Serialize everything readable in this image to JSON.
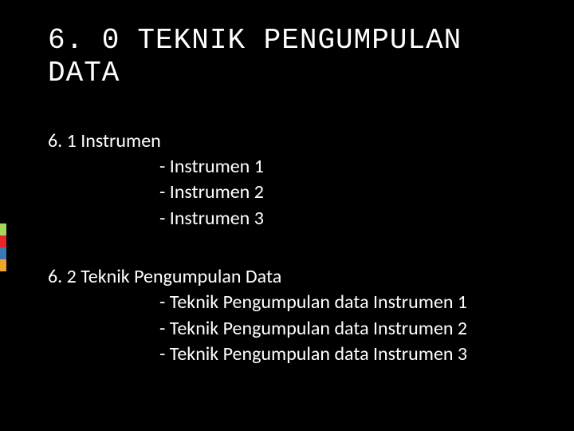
{
  "heading": {
    "number": "6. 0",
    "title": "TEKNIK PENGUMPULAN DATA"
  },
  "section1": {
    "title": "6. 1  Instrumen",
    "items": [
      "- Instrumen 1",
      "-  Instrumen 2",
      "-  Instrumen 3"
    ]
  },
  "section2": {
    "title": "6. 2  Teknik Pengumpulan Data",
    "items": [
      "- Teknik Pengumpulan data Instrumen 1",
      "- Teknik Pengumpulan data Instrumen 2",
      "- Teknik Pengumpulan data Instrumen 3"
    ]
  },
  "accent_colors": [
    "#a8d65c",
    "#e8262a",
    "#3b78b5",
    "#f0a727"
  ]
}
